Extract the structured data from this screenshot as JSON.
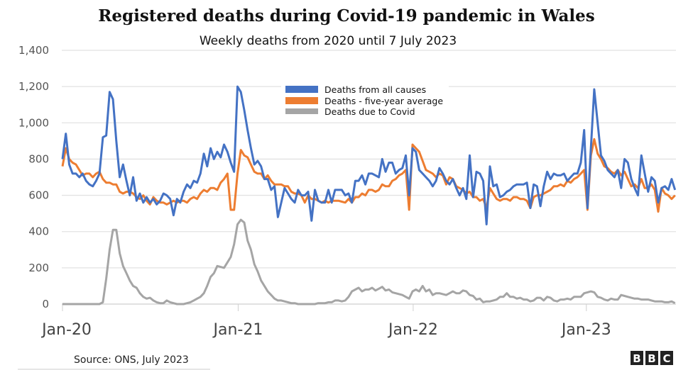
{
  "chart_data": {
    "type": "line",
    "title": "Registered deaths during Covid-19 pandemic in Wales",
    "subtitle": "Weekly deaths from 2020 until 7 July 2023",
    "xlabel": "",
    "ylabel": "",
    "x_tick_labels": [
      "Jan-20",
      "Jan-21",
      "Jan-22",
      "Jan-23"
    ],
    "y_tick_labels": [
      "0",
      "200",
      "400",
      "600",
      "800",
      "1,000",
      "1,200",
      "1,400"
    ],
    "ylim": [
      0,
      1400
    ],
    "grid": true,
    "legend_position": "top-center",
    "series": [
      {
        "name": "Deaths from all causes",
        "color": "#4472C4",
        "values": [
          800,
          940,
          770,
          720,
          720,
          700,
          720,
          680,
          660,
          650,
          680,
          720,
          920,
          930,
          1170,
          1130,
          900,
          700,
          770,
          680,
          600,
          700,
          570,
          610,
          560,
          590,
          560,
          580,
          550,
          570,
          610,
          600,
          580,
          490,
          580,
          560,
          620,
          660,
          640,
          680,
          670,
          720,
          830,
          760,
          860,
          800,
          840,
          810,
          880,
          840,
          780,
          730,
          1200,
          1170,
          1070,
          960,
          860,
          770,
          790,
          760,
          690,
          690,
          630,
          650,
          480,
          560,
          640,
          610,
          580,
          560,
          630,
          600,
          600,
          620,
          460,
          630,
          570,
          560,
          560,
          630,
          560,
          630,
          630,
          630,
          600,
          610,
          560,
          680,
          680,
          710,
          660,
          720,
          720,
          710,
          700,
          800,
          730,
          780,
          780,
          720,
          740,
          750,
          820,
          600,
          860,
          840,
          740,
          720,
          700,
          680,
          650,
          680,
          750,
          720,
          680,
          660,
          690,
          640,
          600,
          640,
          580,
          820,
          590,
          730,
          720,
          680,
          440,
          760,
          650,
          660,
          590,
          600,
          620,
          630,
          650,
          660,
          660,
          660,
          670,
          530,
          660,
          650,
          540,
          650,
          730,
          690,
          720,
          710,
          710,
          720,
          680,
          700,
          720,
          720,
          780,
          960,
          530,
          860,
          1185,
          1000,
          820,
          790,
          740,
          720,
          700,
          740,
          640,
          800,
          780,
          690,
          640,
          600,
          820,
          720,
          620,
          700,
          680,
          560,
          640,
          650,
          630,
          690,
          630
        ]
      },
      {
        "name": "Deaths - five-year average",
        "color": "#ED7D31",
        "values": [
          760,
          860,
          800,
          780,
          770,
          740,
          710,
          720,
          720,
          700,
          720,
          730,
          690,
          670,
          670,
          660,
          660,
          620,
          610,
          620,
          620,
          610,
          590,
          580,
          600,
          570,
          550,
          590,
          570,
          560,
          560,
          550,
          560,
          570,
          560,
          570,
          570,
          560,
          580,
          590,
          580,
          610,
          630,
          620,
          640,
          640,
          630,
          670,
          690,
          720,
          520,
          520,
          720,
          850,
          820,
          810,
          770,
          730,
          720,
          720,
          690,
          710,
          680,
          660,
          660,
          660,
          650,
          650,
          620,
          610,
          610,
          600,
          560,
          600,
          580,
          580,
          570,
          560,
          570,
          560,
          570,
          570,
          570,
          565,
          560,
          580,
          560,
          590,
          590,
          610,
          600,
          630,
          630,
          620,
          630,
          660,
          650,
          650,
          680,
          690,
          710,
          720,
          740,
          520,
          880,
          860,
          840,
          790,
          740,
          730,
          720,
          700,
          720,
          710,
          660,
          700,
          690,
          650,
          640,
          630,
          610,
          620,
          590,
          590,
          570,
          580,
          530,
          640,
          610,
          580,
          570,
          580,
          580,
          570,
          590,
          590,
          580,
          580,
          570,
          530,
          590,
          600,
          600,
          610,
          620,
          630,
          650,
          650,
          660,
          650,
          680,
          670,
          690,
          700,
          720,
          740,
          520,
          820,
          910,
          830,
          800,
          760,
          750,
          730,
          720,
          740,
          710,
          730,
          690,
          650,
          660,
          640,
          690,
          640,
          640,
          660,
          630,
          510,
          640,
          610,
          600,
          580,
          600
        ]
      },
      {
        "name": "Deaths due to Covid",
        "color": "#A5A5A5",
        "values": [
          0,
          0,
          0,
          0,
          0,
          0,
          0,
          0,
          0,
          0,
          0,
          0,
          10,
          140,
          300,
          410,
          410,
          280,
          210,
          170,
          130,
          100,
          90,
          60,
          40,
          30,
          35,
          20,
          10,
          5,
          5,
          20,
          10,
          5,
          0,
          0,
          0,
          5,
          10,
          20,
          30,
          40,
          60,
          100,
          150,
          170,
          210,
          205,
          200,
          230,
          260,
          330,
          440,
          465,
          450,
          350,
          300,
          220,
          180,
          130,
          100,
          70,
          50,
          30,
          20,
          20,
          15,
          10,
          5,
          5,
          0,
          0,
          0,
          0,
          0,
          0,
          5,
          5,
          5,
          10,
          10,
          20,
          20,
          15,
          20,
          40,
          70,
          80,
          90,
          70,
          80,
          80,
          90,
          75,
          85,
          95,
          75,
          80,
          65,
          60,
          55,
          50,
          40,
          30,
          70,
          80,
          70,
          100,
          70,
          80,
          50,
          60,
          60,
          55,
          50,
          60,
          70,
          60,
          60,
          75,
          70,
          50,
          45,
          25,
          30,
          10,
          15,
          15,
          20,
          25,
          40,
          40,
          60,
          40,
          40,
          30,
          35,
          25,
          25,
          15,
          20,
          35,
          35,
          20,
          40,
          35,
          20,
          15,
          25,
          25,
          30,
          25,
          40,
          40,
          40,
          60,
          65,
          70,
          65,
          40,
          35,
          25,
          20,
          30,
          25,
          25,
          50,
          45,
          40,
          35,
          30,
          30,
          25,
          25,
          25,
          20,
          15,
          15,
          15,
          10,
          10,
          15,
          5
        ]
      }
    ]
  },
  "footer": {
    "source": "Source: ONS, July 2023",
    "logo": "BBC"
  }
}
